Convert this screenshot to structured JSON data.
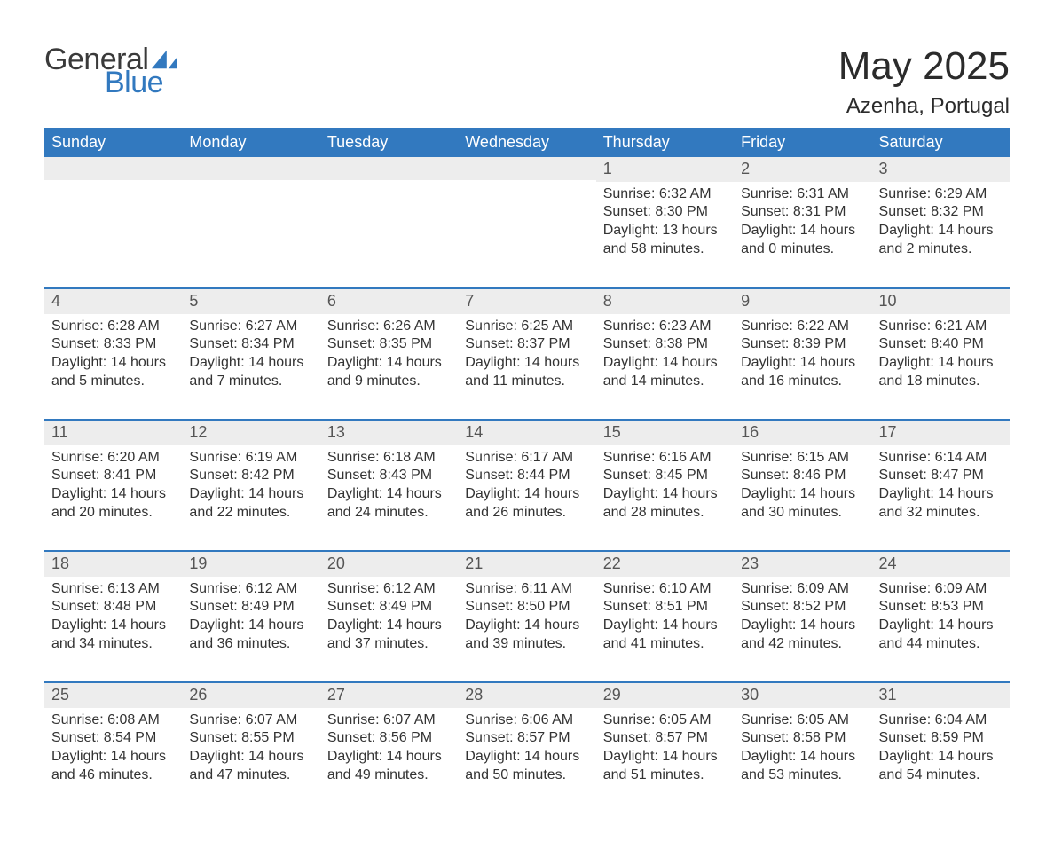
{
  "brand": {
    "general": "General",
    "blue": "Blue",
    "sail_color": "#3279bf"
  },
  "title": {
    "month_year": "May 2025",
    "location": "Azenha, Portugal"
  },
  "colors": {
    "header_bg": "#3279bf",
    "header_fg": "#ffffff",
    "daybar_bg": "#ededed",
    "text": "#333333",
    "row_divider": "#3279bf",
    "page_bg": "#ffffff"
  },
  "typography": {
    "title_fontsize": 44,
    "location_fontsize": 24,
    "weekday_fontsize": 18,
    "daynum_fontsize": 18,
    "body_fontsize": 16
  },
  "weekdays": [
    "Sunday",
    "Monday",
    "Tuesday",
    "Wednesday",
    "Thursday",
    "Friday",
    "Saturday"
  ],
  "weeks": [
    [
      null,
      null,
      null,
      null,
      {
        "n": "1",
        "sunrise": "Sunrise: 6:32 AM",
        "sunset": "Sunset: 8:30 PM",
        "d1": "Daylight: 13 hours",
        "d2": "and 58 minutes."
      },
      {
        "n": "2",
        "sunrise": "Sunrise: 6:31 AM",
        "sunset": "Sunset: 8:31 PM",
        "d1": "Daylight: 14 hours",
        "d2": "and 0 minutes."
      },
      {
        "n": "3",
        "sunrise": "Sunrise: 6:29 AM",
        "sunset": "Sunset: 8:32 PM",
        "d1": "Daylight: 14 hours",
        "d2": "and 2 minutes."
      }
    ],
    [
      {
        "n": "4",
        "sunrise": "Sunrise: 6:28 AM",
        "sunset": "Sunset: 8:33 PM",
        "d1": "Daylight: 14 hours",
        "d2": "and 5 minutes."
      },
      {
        "n": "5",
        "sunrise": "Sunrise: 6:27 AM",
        "sunset": "Sunset: 8:34 PM",
        "d1": "Daylight: 14 hours",
        "d2": "and 7 minutes."
      },
      {
        "n": "6",
        "sunrise": "Sunrise: 6:26 AM",
        "sunset": "Sunset: 8:35 PM",
        "d1": "Daylight: 14 hours",
        "d2": "and 9 minutes."
      },
      {
        "n": "7",
        "sunrise": "Sunrise: 6:25 AM",
        "sunset": "Sunset: 8:37 PM",
        "d1": "Daylight: 14 hours",
        "d2": "and 11 minutes."
      },
      {
        "n": "8",
        "sunrise": "Sunrise: 6:23 AM",
        "sunset": "Sunset: 8:38 PM",
        "d1": "Daylight: 14 hours",
        "d2": "and 14 minutes."
      },
      {
        "n": "9",
        "sunrise": "Sunrise: 6:22 AM",
        "sunset": "Sunset: 8:39 PM",
        "d1": "Daylight: 14 hours",
        "d2": "and 16 minutes."
      },
      {
        "n": "10",
        "sunrise": "Sunrise: 6:21 AM",
        "sunset": "Sunset: 8:40 PM",
        "d1": "Daylight: 14 hours",
        "d2": "and 18 minutes."
      }
    ],
    [
      {
        "n": "11",
        "sunrise": "Sunrise: 6:20 AM",
        "sunset": "Sunset: 8:41 PM",
        "d1": "Daylight: 14 hours",
        "d2": "and 20 minutes."
      },
      {
        "n": "12",
        "sunrise": "Sunrise: 6:19 AM",
        "sunset": "Sunset: 8:42 PM",
        "d1": "Daylight: 14 hours",
        "d2": "and 22 minutes."
      },
      {
        "n": "13",
        "sunrise": "Sunrise: 6:18 AM",
        "sunset": "Sunset: 8:43 PM",
        "d1": "Daylight: 14 hours",
        "d2": "and 24 minutes."
      },
      {
        "n": "14",
        "sunrise": "Sunrise: 6:17 AM",
        "sunset": "Sunset: 8:44 PM",
        "d1": "Daylight: 14 hours",
        "d2": "and 26 minutes."
      },
      {
        "n": "15",
        "sunrise": "Sunrise: 6:16 AM",
        "sunset": "Sunset: 8:45 PM",
        "d1": "Daylight: 14 hours",
        "d2": "and 28 minutes."
      },
      {
        "n": "16",
        "sunrise": "Sunrise: 6:15 AM",
        "sunset": "Sunset: 8:46 PM",
        "d1": "Daylight: 14 hours",
        "d2": "and 30 minutes."
      },
      {
        "n": "17",
        "sunrise": "Sunrise: 6:14 AM",
        "sunset": "Sunset: 8:47 PM",
        "d1": "Daylight: 14 hours",
        "d2": "and 32 minutes."
      }
    ],
    [
      {
        "n": "18",
        "sunrise": "Sunrise: 6:13 AM",
        "sunset": "Sunset: 8:48 PM",
        "d1": "Daylight: 14 hours",
        "d2": "and 34 minutes."
      },
      {
        "n": "19",
        "sunrise": "Sunrise: 6:12 AM",
        "sunset": "Sunset: 8:49 PM",
        "d1": "Daylight: 14 hours",
        "d2": "and 36 minutes."
      },
      {
        "n": "20",
        "sunrise": "Sunrise: 6:12 AM",
        "sunset": "Sunset: 8:49 PM",
        "d1": "Daylight: 14 hours",
        "d2": "and 37 minutes."
      },
      {
        "n": "21",
        "sunrise": "Sunrise: 6:11 AM",
        "sunset": "Sunset: 8:50 PM",
        "d1": "Daylight: 14 hours",
        "d2": "and 39 minutes."
      },
      {
        "n": "22",
        "sunrise": "Sunrise: 6:10 AM",
        "sunset": "Sunset: 8:51 PM",
        "d1": "Daylight: 14 hours",
        "d2": "and 41 minutes."
      },
      {
        "n": "23",
        "sunrise": "Sunrise: 6:09 AM",
        "sunset": "Sunset: 8:52 PM",
        "d1": "Daylight: 14 hours",
        "d2": "and 42 minutes."
      },
      {
        "n": "24",
        "sunrise": "Sunrise: 6:09 AM",
        "sunset": "Sunset: 8:53 PM",
        "d1": "Daylight: 14 hours",
        "d2": "and 44 minutes."
      }
    ],
    [
      {
        "n": "25",
        "sunrise": "Sunrise: 6:08 AM",
        "sunset": "Sunset: 8:54 PM",
        "d1": "Daylight: 14 hours",
        "d2": "and 46 minutes."
      },
      {
        "n": "26",
        "sunrise": "Sunrise: 6:07 AM",
        "sunset": "Sunset: 8:55 PM",
        "d1": "Daylight: 14 hours",
        "d2": "and 47 minutes."
      },
      {
        "n": "27",
        "sunrise": "Sunrise: 6:07 AM",
        "sunset": "Sunset: 8:56 PM",
        "d1": "Daylight: 14 hours",
        "d2": "and 49 minutes."
      },
      {
        "n": "28",
        "sunrise": "Sunrise: 6:06 AM",
        "sunset": "Sunset: 8:57 PM",
        "d1": "Daylight: 14 hours",
        "d2": "and 50 minutes."
      },
      {
        "n": "29",
        "sunrise": "Sunrise: 6:05 AM",
        "sunset": "Sunset: 8:57 PM",
        "d1": "Daylight: 14 hours",
        "d2": "and 51 minutes."
      },
      {
        "n": "30",
        "sunrise": "Sunrise: 6:05 AM",
        "sunset": "Sunset: 8:58 PM",
        "d1": "Daylight: 14 hours",
        "d2": "and 53 minutes."
      },
      {
        "n": "31",
        "sunrise": "Sunrise: 6:04 AM",
        "sunset": "Sunset: 8:59 PM",
        "d1": "Daylight: 14 hours",
        "d2": "and 54 minutes."
      }
    ]
  ]
}
